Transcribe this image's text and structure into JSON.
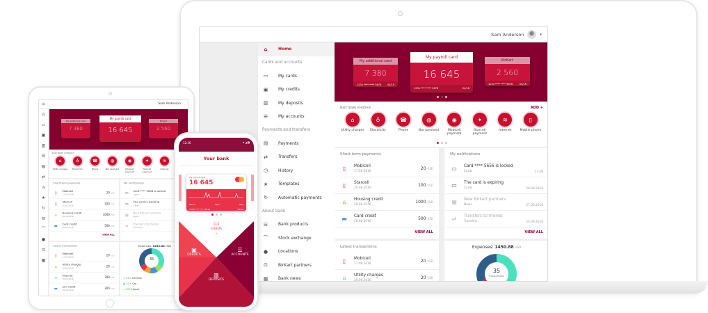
{
  "colors": {
    "brand": "#86002f",
    "accent": "#c8102e",
    "card": "#c8143a"
  },
  "user": {
    "name": "Sam Anderson"
  },
  "sidebar": [
    {
      "type": "item",
      "label": "Home",
      "icon": "home-icon",
      "glyph": "⌂",
      "active": true
    },
    {
      "type": "section",
      "label": "Cards and accounts"
    },
    {
      "type": "item",
      "label": "My cards",
      "icon": "card-icon",
      "glyph": "▭"
    },
    {
      "type": "item",
      "label": "My credits",
      "icon": "credit-icon",
      "glyph": "▣"
    },
    {
      "type": "item",
      "label": "My deposits",
      "icon": "deposit-icon",
      "glyph": "▥"
    },
    {
      "type": "item",
      "label": "My accounts",
      "icon": "list-icon",
      "glyph": "☰"
    },
    {
      "type": "section",
      "label": "Payments and transfers"
    },
    {
      "type": "item",
      "label": "Payments",
      "icon": "wallet-icon",
      "glyph": "▤"
    },
    {
      "type": "item",
      "label": "Transfers",
      "icon": "transfer-icon",
      "glyph": "⇄"
    },
    {
      "type": "item",
      "label": "History",
      "icon": "history-icon",
      "glyph": "◷"
    },
    {
      "type": "item",
      "label": "Templates",
      "icon": "star-icon",
      "glyph": "★"
    },
    {
      "type": "item",
      "label": "Automatic payments",
      "icon": "refresh-icon",
      "glyph": "↻"
    },
    {
      "type": "section",
      "label": "About bank"
    },
    {
      "type": "item",
      "label": "Bank products",
      "icon": "briefcase-icon",
      "glyph": "⊟"
    },
    {
      "type": "item",
      "label": "Stock exchange",
      "icon": "stock-icon",
      "glyph": "⌒"
    },
    {
      "type": "item",
      "label": "Locations",
      "icon": "location-icon",
      "glyph": "●"
    },
    {
      "type": "item",
      "label": "BirKart partners",
      "icon": "partners-icon",
      "glyph": "⊡"
    },
    {
      "type": "item",
      "label": "Bank news",
      "icon": "news-icon",
      "glyph": "▦"
    }
  ],
  "cards": [
    {
      "title": "My additional card",
      "balance": "7 380",
      "number": "1234  ****  ****  5678",
      "exp": "05/19"
    },
    {
      "title": "My payroll card",
      "balance": "16 645",
      "number": "1234  ****  ****  5678",
      "exp": "04/18"
    },
    {
      "title": "BirKart",
      "balance": "2 560",
      "number": "1234  ****  ****  5678",
      "exp": "04/16"
    }
  ],
  "quick": {
    "title": "Быстрые кнопки",
    "add": "ADD +",
    "buttons": [
      {
        "label": "Utility charges",
        "icon": "home-icon",
        "glyph": "⌂"
      },
      {
        "label": "Electricity",
        "icon": "bulb-icon",
        "glyph": "♁"
      },
      {
        "label": "Phone",
        "icon": "phone-icon",
        "glyph": "☎"
      },
      {
        "label": "Nar payment",
        "icon": "nar-icon",
        "glyph": "◍"
      },
      {
        "label": "Mobicell payment",
        "icon": "mobicell-icon",
        "glyph": "◉"
      },
      {
        "label": "Starcell payment",
        "icon": "starcell-icon",
        "glyph": "✦"
      },
      {
        "label": "Internet",
        "icon": "wifi-icon",
        "glyph": "≋"
      },
      {
        "label": "Mobile phone",
        "icon": "mobile-icon",
        "glyph": "▯"
      }
    ]
  },
  "short_term": {
    "title": "Short-term payments",
    "view_all": "VIEW ALL",
    "currency": "USD",
    "items": [
      {
        "name": "Mobicell",
        "date": "17.06.2016",
        "amount": "20",
        "icon": "mobile-icon",
        "glyph": "▯",
        "color": "#e8334a"
      },
      {
        "name": "Starcell",
        "date": "20.06.2016",
        "amount": "100",
        "icon": "mobile-icon",
        "glyph": "▯",
        "color": "#e8334a"
      },
      {
        "name": "Housing credit",
        "date": "20.06.2016",
        "amount": "1000",
        "icon": "home-icon",
        "glyph": "⌂",
        "color": "#8bc34a"
      },
      {
        "name": "Card credit",
        "date": "28.06.2016",
        "amount": "500",
        "icon": "car-icon",
        "glyph": "▬",
        "color": "#4a90d9"
      }
    ]
  },
  "notifications": {
    "title": "My notifications",
    "view_all": "VIEW ALL",
    "items": [
      {
        "name": "Card **** 5656 is locked",
        "cat": "Cards",
        "time": "17:48",
        "icon": "card-icon",
        "glyph": "▭",
        "dim": false
      },
      {
        "name": "The card is expiring",
        "cat": "Cards",
        "time": "28.09.2016",
        "icon": "card-icon",
        "glyph": "▭",
        "dim": false
      },
      {
        "name": "New Birkart partners",
        "cat": "News",
        "time": "27.09.2016",
        "icon": "news-icon",
        "glyph": "▦",
        "dim": true
      },
      {
        "name": "Transfers to friends",
        "cat": "Transfers",
        "time": "24.09.2016",
        "icon": "transfer-icon",
        "glyph": "⇄",
        "dim": true
      }
    ]
  },
  "latest": {
    "title": "Latest transactions",
    "items": [
      {
        "name": "Mobicell",
        "date": "17.06.2016",
        "amount": "20",
        "icon": "mobile-icon",
        "glyph": "▯",
        "color": "#e8334a"
      },
      {
        "name": "Utility charges",
        "date": "20.06.2016",
        "amount": "20",
        "icon": "home-icon",
        "glyph": "⌂",
        "color": "#8bc34a"
      },
      {
        "name": "Internet",
        "date": "20.06.2016",
        "amount": "300",
        "icon": "wifi-icon",
        "glyph": "≋",
        "color": "#4dd9b8"
      },
      {
        "name": "Car credit",
        "date": "28.06.2016",
        "amount": "300",
        "icon": "car-icon",
        "glyph": "▬",
        "color": "#4a90d9"
      }
    ]
  },
  "expenses": {
    "label": "Expenses:",
    "total": "1450.88",
    "currency": "USD",
    "count": "35",
    "count_label": "transactions",
    "segments": [
      {
        "color": "#4de0bf",
        "v": 34
      },
      {
        "color": "#9be05a",
        "v": 8
      },
      {
        "color": "#4a90d9",
        "v": 10
      },
      {
        "color": "#f5a623",
        "v": 8
      },
      {
        "color": "#e8334a",
        "v": 8
      },
      {
        "color": "#2f5d8a",
        "v": 32
      }
    ],
    "legend": [
      {
        "pct": "34%",
        "label": "Internet",
        "icon": "wifi-icon",
        "glyph": "≋",
        "color": "#4de0bf"
      },
      {
        "pct": "32%",
        "label": "Car",
        "icon": "car-icon",
        "glyph": "▬",
        "color": "#4a90d9"
      },
      {
        "pct": "34%",
        "label": "House",
        "icon": "home-icon",
        "glyph": "⌂",
        "color": "#8bc34a"
      }
    ]
  },
  "phone": {
    "time": "12:30",
    "title": "Your bank",
    "card_title": "My payroll card",
    "balance": "16 645",
    "months": [
      "March",
      "April",
      "May"
    ],
    "number": "1234  ****  ****  5678",
    "exp": "04/18",
    "tiles": {
      "cards": "CARDS",
      "credits": "CREDITS",
      "accounts": "ACCOUNTS",
      "deposits": "DEPOSITS"
    }
  }
}
